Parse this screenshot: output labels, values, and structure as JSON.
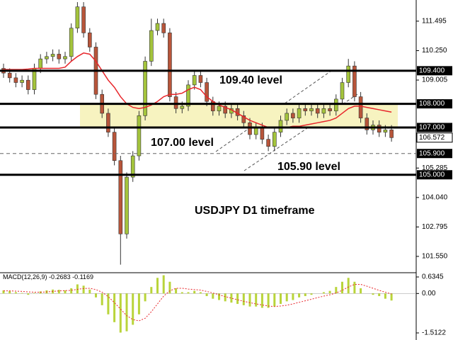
{
  "chart_data": [
    {
      "type": "candlestick",
      "open": [
        109.5,
        109.3,
        109.1,
        108.9,
        109.0,
        108.6,
        109.5,
        109.9,
        110.0,
        110.1,
        109.9,
        110.0,
        111.2,
        112.1,
        111.0,
        110.4,
        108.4,
        107.6,
        106.8,
        105.6,
        102.5,
        104.9,
        105.8,
        107.5,
        109.8,
        111.1,
        111.4,
        111.0,
        108.3,
        107.8,
        107.9,
        108.8,
        109.2,
        108.9,
        108.1,
        107.7,
        107.9,
        107.6,
        107.8,
        107.5,
        107.2,
        106.7,
        107.0,
        106.5,
        106.2,
        106.8,
        107.3,
        107.6,
        107.4,
        107.8,
        107.7,
        107.8,
        107.6,
        107.8,
        107.7,
        108.2,
        108.9,
        109.6,
        108.3,
        107.4,
        106.9,
        107.1,
        106.8,
        106.9
      ],
      "high": [
        109.7,
        109.5,
        109.3,
        109.2,
        109.2,
        109.7,
        110.1,
        110.2,
        110.3,
        110.3,
        110.2,
        111.4,
        112.3,
        112.3,
        111.2,
        110.6,
        108.6,
        107.8,
        107.0,
        105.8,
        105.1,
        106.0,
        107.7,
        110.0,
        111.6,
        111.6,
        111.6,
        111.2,
        108.5,
        108.1,
        109.0,
        109.4,
        109.4,
        109.1,
        108.3,
        108.1,
        108.1,
        108.0,
        108.0,
        107.7,
        107.4,
        107.2,
        107.2,
        106.7,
        107.0,
        107.5,
        107.8,
        107.8,
        108.0,
        108.0,
        108.0,
        108.0,
        108.0,
        108.0,
        108.4,
        109.1,
        109.9,
        109.8,
        108.5,
        107.6,
        107.3,
        107.3,
        107.1,
        107.1
      ],
      "low": [
        109.1,
        108.9,
        108.7,
        108.7,
        108.4,
        108.4,
        109.3,
        109.7,
        109.8,
        109.7,
        109.7,
        109.8,
        111.0,
        110.8,
        110.2,
        108.2,
        107.4,
        106.6,
        105.4,
        101.2,
        102.3,
        104.7,
        105.6,
        107.3,
        109.6,
        110.9,
        110.8,
        108.1,
        107.6,
        107.6,
        107.7,
        108.6,
        108.7,
        107.9,
        107.5,
        107.5,
        107.4,
        107.4,
        107.3,
        107.0,
        106.5,
        106.5,
        106.3,
        106.0,
        106.0,
        106.6,
        107.1,
        107.2,
        107.2,
        107.5,
        107.5,
        107.4,
        107.4,
        107.5,
        107.5,
        108.0,
        108.7,
        108.1,
        107.2,
        106.7,
        106.7,
        106.6,
        106.6,
        106.4
      ],
      "close": [
        109.3,
        109.1,
        108.9,
        109.0,
        108.6,
        109.5,
        109.9,
        110.0,
        110.1,
        109.9,
        110.0,
        111.2,
        112.1,
        111.0,
        110.4,
        108.4,
        107.6,
        106.8,
        105.6,
        102.5,
        104.9,
        105.8,
        107.5,
        109.8,
        111.1,
        111.4,
        111.0,
        108.3,
        107.8,
        107.9,
        108.8,
        109.2,
        108.9,
        108.1,
        107.7,
        107.9,
        107.6,
        107.8,
        107.5,
        107.2,
        106.7,
        107.0,
        106.5,
        106.2,
        106.8,
        107.3,
        107.6,
        107.4,
        107.8,
        107.7,
        107.8,
        107.6,
        107.8,
        107.7,
        108.2,
        108.9,
        109.6,
        108.3,
        107.4,
        106.9,
        107.1,
        106.8,
        106.9,
        106.57
      ],
      "up_color": "#a4c43c",
      "down_color": "#b8553a",
      "ma": {
        "color": "#e8262b",
        "values": [
          109.45,
          109.45,
          109.45,
          109.45,
          109.47,
          109.5,
          109.5,
          109.5,
          109.5,
          109.5,
          109.55,
          109.8,
          110.0,
          110.15,
          110.1,
          109.8,
          109.4,
          109.0,
          108.7,
          108.3,
          108.0,
          107.85,
          107.8,
          107.85,
          107.95,
          108.1,
          108.3,
          108.4,
          108.4,
          108.45,
          108.6,
          108.7,
          108.6,
          108.3,
          108.1,
          107.95,
          107.85,
          107.75,
          107.6,
          107.45,
          107.3,
          107.2,
          107.1,
          107.0,
          107.0,
          107.0,
          107.0,
          107.05,
          107.05,
          107.1,
          107.15,
          107.2,
          107.25,
          107.3,
          107.4,
          107.6,
          107.8,
          107.9,
          107.9,
          107.85,
          107.8,
          107.75,
          107.7,
          107.65
        ]
      },
      "ylim": [
        100.89,
        112.39
      ],
      "yticks": [
        111.495,
        {
          "value": 110.25,
          "label": "110.250"
        },
        109.005,
        105.285,
        {
          "value": 104.04,
          "label": "104.040"
        },
        102.795,
        {
          "value": 101.55,
          "label": "101.550"
        }
      ],
      "levels": [
        {
          "value": 109.4,
          "label": "109.400",
          "style": "solid"
        },
        {
          "value": 108,
          "label": "108.000",
          "style": "solid"
        },
        {
          "value": 107,
          "label": "107.000",
          "style": "solid"
        },
        {
          "value": 105.9,
          "label": "105.900",
          "style": "dashed"
        },
        {
          "value": 105,
          "label": "105.000",
          "style": "solid"
        }
      ],
      "current_price": {
        "value": 106.572,
        "label": "106.572"
      },
      "zone": [
        107,
        108
      ],
      "zone_color": "#f7f3c0",
      "annotations": [
        "109.40 level",
        "107.00 level",
        "105.90 level",
        "USDJPY D1 timeframe"
      ]
    },
    {
      "type": "macd",
      "indicator": "MACD(12,26,9)",
      "current_values": [
        -0.2683,
        -0.1169
      ],
      "histogram": {
        "color": "#b9d43a",
        "values": [
          0.12,
          0.1,
          0.05,
          0.02,
          -0.05,
          0.02,
          0.08,
          0.12,
          0.15,
          0.14,
          0.12,
          0.2,
          0.35,
          0.3,
          0.15,
          -0.15,
          -0.45,
          -0.8,
          -1.1,
          -1.5,
          -1.45,
          -1.2,
          -0.8,
          -0.3,
          0.25,
          0.6,
          0.7,
          0.45,
          0.2,
          0.05,
          0.05,
          0.1,
          0.05,
          -0.1,
          -0.2,
          -0.25,
          -0.3,
          -0.35,
          -0.4,
          -0.45,
          -0.5,
          -0.5,
          -0.55,
          -0.55,
          -0.5,
          -0.4,
          -0.3,
          -0.25,
          -0.15,
          -0.1,
          -0.05,
          0.0,
          0.05,
          0.1,
          0.25,
          0.45,
          0.6,
          0.45,
          0.2,
          0.0,
          -0.05,
          -0.1,
          -0.2,
          -0.27
        ]
      },
      "signal": {
        "color": "#e8262b",
        "values": [
          0.1,
          0.1,
          0.09,
          0.08,
          0.06,
          0.05,
          0.05,
          0.06,
          0.08,
          0.1,
          0.11,
          0.12,
          0.16,
          0.19,
          0.2,
          0.15,
          0.05,
          -0.12,
          -0.35,
          -0.6,
          -0.85,
          -1.0,
          -1.05,
          -0.95,
          -0.7,
          -0.4,
          -0.1,
          0.1,
          0.2,
          0.2,
          0.17,
          0.15,
          0.13,
          0.08,
          0.02,
          -0.05,
          -0.12,
          -0.18,
          -0.24,
          -0.3,
          -0.35,
          -0.4,
          -0.44,
          -0.48,
          -0.5,
          -0.48,
          -0.45,
          -0.4,
          -0.34,
          -0.28,
          -0.22,
          -0.16,
          -0.1,
          -0.05,
          0.02,
          0.12,
          0.25,
          0.35,
          0.35,
          0.28,
          0.2,
          0.12,
          0.05,
          -0.02
        ]
      },
      "ylim": [
        -1.73,
        0.77
      ],
      "yticks": [
        0.6345,
        {
          "value": 0,
          "label": "0.00"
        },
        -1.5122
      ]
    }
  ]
}
